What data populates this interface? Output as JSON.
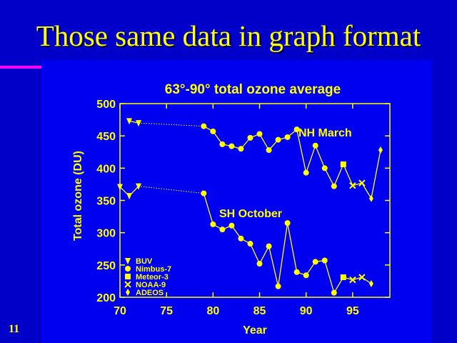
{
  "slide": {
    "title": "Those same data in graph format",
    "number": "11"
  },
  "colors": {
    "background": "#0000c8",
    "panel": "#0000f0",
    "accent": "#ff00ff",
    "foreground": "#ffff00"
  },
  "chart_data": {
    "type": "line",
    "title": "63°-90° total ozone average",
    "xlabel": "Year",
    "ylabel": "Total ozone (DU)",
    "xlim": [
      70,
      99
    ],
    "ylim": [
      200,
      500
    ],
    "xticks": [
      70,
      75,
      80,
      85,
      90,
      95
    ],
    "yticks": [
      200,
      250,
      300,
      350,
      400,
      450,
      500
    ],
    "grid": false,
    "legend_position": "bottom-left",
    "legend": [
      {
        "name": "BUV",
        "marker": "triangle-down"
      },
      {
        "name": "Nimbus-7",
        "marker": "circle"
      },
      {
        "name": "Meteor-3",
        "marker": "square"
      },
      {
        "name": "NOAA-9",
        "marker": "x"
      },
      {
        "name": "ADEOS",
        "marker": "diamond"
      }
    ],
    "series": [
      {
        "name": "NH March",
        "points": [
          {
            "x": 71,
            "y": 473,
            "marker": "triangle-down"
          },
          {
            "x": 72,
            "y": 470,
            "marker": "triangle-down"
          },
          {
            "x": 79,
            "y": 465,
            "marker": "circle"
          },
          {
            "x": 80,
            "y": 457,
            "marker": "circle"
          },
          {
            "x": 81,
            "y": 437,
            "marker": "circle"
          },
          {
            "x": 82,
            "y": 434,
            "marker": "circle"
          },
          {
            "x": 83,
            "y": 430,
            "marker": "circle"
          },
          {
            "x": 84,
            "y": 447,
            "marker": "circle"
          },
          {
            "x": 85,
            "y": 453,
            "marker": "circle"
          },
          {
            "x": 86,
            "y": 428,
            "marker": "circle"
          },
          {
            "x": 87,
            "y": 444,
            "marker": "circle"
          },
          {
            "x": 88,
            "y": 448,
            "marker": "circle"
          },
          {
            "x": 89,
            "y": 460,
            "marker": "circle"
          },
          {
            "x": 90,
            "y": 393,
            "marker": "circle"
          },
          {
            "x": 91,
            "y": 435,
            "marker": "circle"
          },
          {
            "x": 92,
            "y": 400,
            "marker": "circle"
          },
          {
            "x": 93,
            "y": 372,
            "marker": "circle"
          },
          {
            "x": 94,
            "y": 406,
            "marker": "square"
          },
          {
            "x": 95,
            "y": 373,
            "marker": "x"
          },
          {
            "x": 96,
            "y": 377,
            "marker": "x"
          },
          {
            "x": 97,
            "y": 353,
            "marker": "diamond"
          },
          {
            "x": 98,
            "y": 428,
            "marker": "diamond"
          }
        ]
      },
      {
        "name": "SH October",
        "points": [
          {
            "x": 70,
            "y": 371,
            "marker": "triangle-down"
          },
          {
            "x": 71,
            "y": 357,
            "marker": "triangle-down"
          },
          {
            "x": 72,
            "y": 372,
            "marker": "triangle-down"
          },
          {
            "x": 79,
            "y": 361,
            "marker": "circle"
          },
          {
            "x": 80,
            "y": 313,
            "marker": "circle"
          },
          {
            "x": 81,
            "y": 305,
            "marker": "circle"
          },
          {
            "x": 82,
            "y": 311,
            "marker": "circle"
          },
          {
            "x": 83,
            "y": 291,
            "marker": "circle"
          },
          {
            "x": 84,
            "y": 283,
            "marker": "circle"
          },
          {
            "x": 85,
            "y": 252,
            "marker": "circle"
          },
          {
            "x": 86,
            "y": 279,
            "marker": "circle"
          },
          {
            "x": 87,
            "y": 217,
            "marker": "circle"
          },
          {
            "x": 88,
            "y": 315,
            "marker": "circle"
          },
          {
            "x": 89,
            "y": 239,
            "marker": "circle"
          },
          {
            "x": 90,
            "y": 234,
            "marker": "circle"
          },
          {
            "x": 91,
            "y": 255,
            "marker": "circle"
          },
          {
            "x": 92,
            "y": 257,
            "marker": "circle"
          },
          {
            "x": 93,
            "y": 207,
            "marker": "circle"
          },
          {
            "x": 94,
            "y": 231,
            "marker": "square"
          },
          {
            "x": 95,
            "y": 227,
            "marker": "x"
          },
          {
            "x": 96,
            "y": 231,
            "marker": "x"
          },
          {
            "x": 97,
            "y": 221,
            "marker": "diamond"
          }
        ]
      }
    ],
    "gaps": [
      {
        "series": 0,
        "from": 72,
        "to": 79
      },
      {
        "series": 1,
        "from": 72,
        "to": 79
      }
    ]
  }
}
